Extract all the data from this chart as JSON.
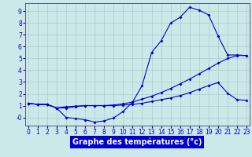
{
  "title": "Graphe des températures (°c)",
  "bg_color": "#cce8e8",
  "line_color": "#0000cc",
  "grid_color": "#aacccc",
  "x_ticks": [
    0,
    1,
    2,
    3,
    4,
    5,
    6,
    7,
    8,
    9,
    10,
    11,
    12,
    13,
    14,
    15,
    16,
    17,
    18,
    19,
    20,
    21,
    22,
    23
  ],
  "y_ticks": [
    0,
    1,
    2,
    3,
    4,
    5,
    6,
    7,
    8,
    9
  ],
  "y_labels": [
    "-0",
    "1",
    "2",
    "3",
    "4",
    "5",
    "6",
    "7",
    "8",
    "9"
  ],
  "ylim": [
    -0.7,
    9.7
  ],
  "xlim": [
    -0.3,
    23.3
  ],
  "curve1_x": [
    0,
    1,
    2,
    3,
    4,
    5,
    6,
    7,
    8,
    9,
    10,
    11,
    12,
    13,
    14,
    15,
    16,
    17,
    18,
    19,
    20,
    21,
    22,
    23
  ],
  "curve1_y": [
    1.2,
    1.1,
    1.1,
    0.8,
    0.0,
    -0.1,
    -0.2,
    -0.4,
    -0.3,
    -0.05,
    0.5,
    1.3,
    2.7,
    5.5,
    6.5,
    8.0,
    8.5,
    9.35,
    9.1,
    8.7,
    6.9,
    5.3,
    5.3,
    5.25
  ],
  "curve2_x": [
    0,
    1,
    2,
    3,
    4,
    5,
    6,
    7,
    8,
    9,
    10,
    11,
    12,
    13,
    14,
    15,
    16,
    17,
    18,
    19,
    20,
    21,
    22,
    23
  ],
  "curve2_y": [
    1.2,
    1.1,
    1.1,
    0.8,
    0.8,
    0.9,
    1.0,
    1.0,
    1.0,
    1.0,
    1.05,
    1.1,
    1.2,
    1.35,
    1.5,
    1.65,
    1.85,
    2.1,
    2.4,
    2.7,
    2.95,
    2.05,
    1.5,
    1.45
  ],
  "curve3_x": [
    0,
    1,
    2,
    3,
    4,
    5,
    6,
    7,
    8,
    9,
    10,
    11,
    12,
    13,
    14,
    15,
    16,
    17,
    18,
    19,
    20,
    21,
    22,
    23
  ],
  "curve3_y": [
    1.2,
    1.1,
    1.1,
    0.8,
    0.9,
    0.95,
    1.0,
    1.0,
    1.0,
    1.05,
    1.15,
    1.3,
    1.55,
    1.8,
    2.1,
    2.45,
    2.85,
    3.25,
    3.7,
    4.15,
    4.6,
    5.0,
    5.25,
    5.25
  ],
  "xlabel_fontsize": 7,
  "tick_fontsize": 5.5,
  "lw": 0.8,
  "ms": 2.0
}
